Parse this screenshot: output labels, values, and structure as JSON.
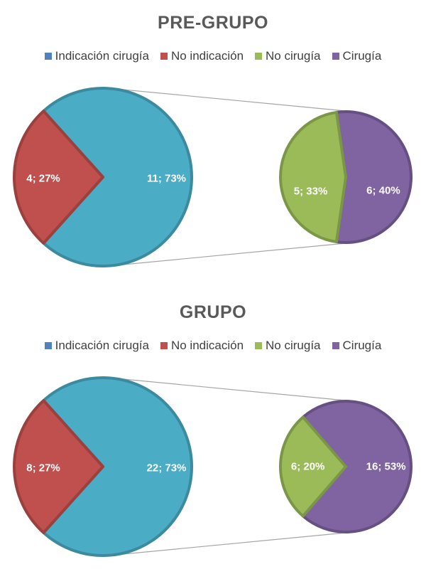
{
  "chart_data": [
    {
      "type": "pie",
      "subtype": "pie-of-pie",
      "title": "PRE-GRUPO",
      "legend": [
        "Indicación cirugía",
        "No indicación",
        "No cirugía",
        "Cirugía"
      ],
      "legend_colors": [
        "#4f81bd",
        "#c0504d",
        "#9bbb59",
        "#8064a2"
      ],
      "legend_position": "top",
      "main_pie": [
        {
          "name": "Indicación cirugía",
          "value": 11,
          "percent": "73%",
          "label": "11; 73%",
          "color": "#4bacc6"
        },
        {
          "name": "No indicación",
          "value": 4,
          "percent": "27%",
          "label": "4; 27%",
          "color": "#c0504d"
        }
      ],
      "secondary_pie": [
        {
          "name": "No cirugía",
          "value": 5,
          "percent": "33%",
          "label": "5; 33%",
          "color": "#9bbb59"
        },
        {
          "name": "Cirugía",
          "value": 6,
          "percent": "40%",
          "label": "6; 40%",
          "color": "#8064a2"
        }
      ]
    },
    {
      "type": "pie",
      "subtype": "pie-of-pie",
      "title": "GRUPO",
      "legend": [
        "Indicación cirugía",
        "No indicación",
        "No cirugía",
        "Cirugía"
      ],
      "legend_colors": [
        "#4f81bd",
        "#c0504d",
        "#9bbb59",
        "#8064a2"
      ],
      "legend_position": "top",
      "main_pie": [
        {
          "name": "Indicación cirugía",
          "value": 22,
          "percent": "73%",
          "label": "22; 73%",
          "color": "#4bacc6"
        },
        {
          "name": "No indicación",
          "value": 8,
          "percent": "27%",
          "label": "8; 27%",
          "color": "#c0504d"
        }
      ],
      "secondary_pie": [
        {
          "name": "No cirugía",
          "value": 6,
          "percent": "20%",
          "label": "6; 20%",
          "color": "#9bbb59"
        },
        {
          "name": "Cirugía",
          "value": 16,
          "percent": "53%",
          "label": "16; 53%",
          "color": "#8064a2"
        }
      ]
    }
  ]
}
